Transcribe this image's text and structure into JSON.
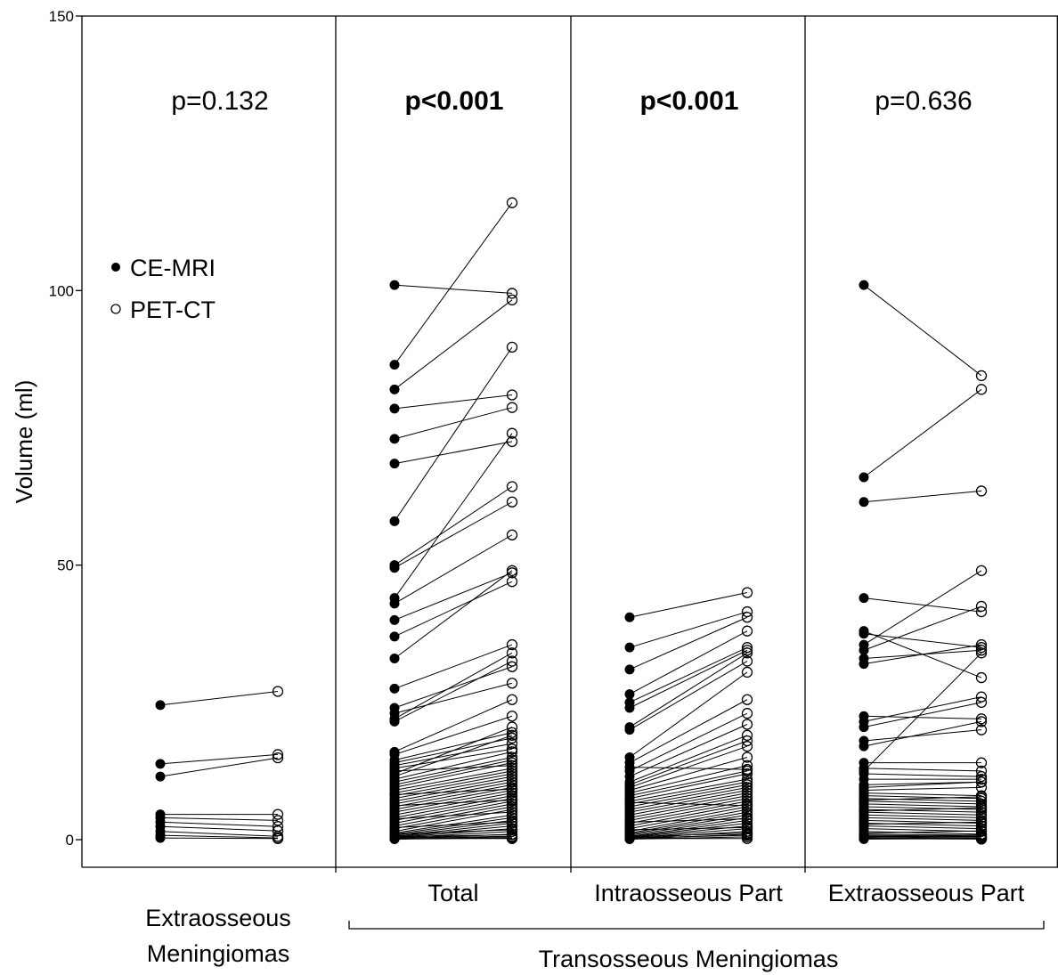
{
  "chart_data": {
    "type": "scatter",
    "subtype": "paired-dot plot",
    "ylabel": "Volume (ml)",
    "ylim": [
      0,
      150
    ],
    "y_ticks": [
      0,
      50,
      100,
      150
    ],
    "grid": false,
    "legend": {
      "position": "top-left",
      "entries": [
        "CE-MRI",
        "PET-CT"
      ]
    },
    "series_styles": [
      {
        "name": "CE-MRI",
        "marker": "filled circle",
        "color": "#000000"
      },
      {
        "name": "PET-CT",
        "marker": "open circle",
        "color": "#000000"
      }
    ],
    "panels": [
      {
        "label": "Extraosseous\nMeningiomas",
        "group": "",
        "p_value": "p=0.132",
        "p_bold": false,
        "pairs": [
          [
            24.5,
            27
          ],
          [
            13.8,
            15.5
          ],
          [
            11.5,
            14.9
          ],
          [
            4.6,
            4.6
          ],
          [
            4,
            3.5
          ],
          [
            3.2,
            2.4
          ],
          [
            2.4,
            1.6
          ],
          [
            1.5,
            0.6
          ],
          [
            0.8,
            0.3
          ],
          [
            0.3,
            0.2
          ]
        ]
      },
      {
        "label": "Total",
        "group": "Transosseous Meningiomas",
        "p_value": "p<0.001",
        "p_bold": true,
        "pairs": [
          [
            101,
            99.5
          ],
          [
            86.5,
            116
          ],
          [
            82,
            98.3
          ],
          [
            78.5,
            81
          ],
          [
            73,
            78.7
          ],
          [
            68.5,
            72.5
          ],
          [
            58,
            89.7
          ],
          [
            50,
            64.3
          ],
          [
            49.5,
            61.5
          ],
          [
            44,
            74
          ],
          [
            43,
            55.5
          ],
          [
            40,
            48.6
          ],
          [
            37,
            47
          ],
          [
            33,
            49
          ],
          [
            27.5,
            35.5
          ],
          [
            24,
            31.5
          ],
          [
            23,
            28.5
          ],
          [
            22,
            34
          ],
          [
            21.5,
            32.5
          ],
          [
            16,
            25.5
          ],
          [
            15.5,
            22.5
          ],
          [
            14.5,
            19.5
          ],
          [
            14,
            18.5
          ],
          [
            13.5,
            17.5
          ],
          [
            13,
            16.5
          ],
          [
            12,
            20.5
          ],
          [
            11.5,
            19
          ],
          [
            11,
            16
          ],
          [
            10.5,
            15
          ],
          [
            10,
            14.5
          ],
          [
            9.5,
            14
          ],
          [
            9,
            13
          ],
          [
            8.5,
            12.5
          ],
          [
            8,
            12
          ],
          [
            7.5,
            11.5
          ],
          [
            7,
            11
          ],
          [
            6.5,
            10.5
          ],
          [
            6,
            10
          ],
          [
            5.5,
            9.5
          ],
          [
            5,
            9
          ],
          [
            4.5,
            8.5
          ],
          [
            4,
            8
          ],
          [
            3.5,
            7.5
          ],
          [
            3,
            7
          ],
          [
            2.5,
            6.5
          ],
          [
            2,
            6
          ],
          [
            1.5,
            5.5
          ],
          [
            1.2,
            4.5
          ],
          [
            1,
            4
          ],
          [
            0.8,
            3.5
          ],
          [
            0.6,
            3
          ],
          [
            0.5,
            2.5
          ],
          [
            0.4,
            2
          ],
          [
            0.3,
            1.5
          ],
          [
            0.2,
            1
          ],
          [
            0.1,
            0.5
          ],
          [
            0.1,
            0.3
          ],
          [
            0.2,
            0.2
          ],
          [
            0.3,
            0.6
          ],
          [
            0.5,
            0.9
          ],
          [
            1,
            1.8
          ],
          [
            2.2,
            3.2
          ],
          [
            3.8,
            5
          ],
          [
            6.2,
            7.2
          ],
          [
            8.2,
            9.2
          ],
          [
            12.5,
            13.5
          ]
        ]
      },
      {
        "label": "Intraosseous Part",
        "group": "Transosseous Meningiomas",
        "p_value": "p<0.001",
        "p_bold": true,
        "pairs": [
          [
            40.5,
            45
          ],
          [
            35,
            41.5
          ],
          [
            31,
            40.5
          ],
          [
            26.5,
            38
          ],
          [
            25,
            35
          ],
          [
            24,
            34.5
          ],
          [
            20.5,
            34
          ],
          [
            20,
            32.5
          ],
          [
            15,
            30.5
          ],
          [
            14,
            25.5
          ],
          [
            12.5,
            23
          ],
          [
            11.5,
            21
          ],
          [
            10.5,
            19
          ],
          [
            10,
            18
          ],
          [
            9.5,
            17
          ],
          [
            9,
            15
          ],
          [
            8.5,
            13.5
          ],
          [
            8,
            12.5
          ],
          [
            7.5,
            12
          ],
          [
            7,
            11
          ],
          [
            6.5,
            10.5
          ],
          [
            6,
            10
          ],
          [
            5.5,
            9.5
          ],
          [
            5,
            9
          ],
          [
            4.5,
            8.5
          ],
          [
            4,
            8
          ],
          [
            3.5,
            7.5
          ],
          [
            3,
            7
          ],
          [
            2.5,
            6.5
          ],
          [
            2,
            6
          ],
          [
            1.5,
            5.5
          ],
          [
            1.2,
            5
          ],
          [
            1,
            4.5
          ],
          [
            0.8,
            4
          ],
          [
            0.6,
            3.5
          ],
          [
            0.5,
            3
          ],
          [
            0.4,
            2.5
          ],
          [
            0.3,
            2
          ],
          [
            0.2,
            1.5
          ],
          [
            0.1,
            1
          ],
          [
            0.1,
            0.5
          ],
          [
            0.2,
            0.2
          ],
          [
            0.3,
            0.8
          ],
          [
            0.5,
            1.2
          ],
          [
            1.8,
            2.2
          ],
          [
            3.2,
            3.8
          ],
          [
            6.8,
            6.2
          ],
          [
            13.2,
            12.8
          ]
        ]
      },
      {
        "label": "Extraosseous Part",
        "group": "Transosseous Meningiomas",
        "p_value": "p=0.636",
        "p_bold": false,
        "pairs": [
          [
            101,
            84.5
          ],
          [
            66,
            82
          ],
          [
            61.5,
            63.5
          ],
          [
            44,
            41.5
          ],
          [
            38,
            29.5
          ],
          [
            37.5,
            35
          ],
          [
            35.5,
            49
          ],
          [
            34.5,
            42.5
          ],
          [
            33,
            34.5
          ],
          [
            32,
            35.5
          ],
          [
            22.5,
            22
          ],
          [
            21.5,
            26
          ],
          [
            20.5,
            25
          ],
          [
            18,
            20
          ],
          [
            17,
            21.5
          ],
          [
            14,
            14
          ],
          [
            12.5,
            34
          ],
          [
            11,
            11
          ],
          [
            10,
            10.5
          ],
          [
            9,
            9.5
          ],
          [
            8.5,
            8
          ],
          [
            8,
            7.5
          ],
          [
            7.5,
            7
          ],
          [
            7,
            6.5
          ],
          [
            6.5,
            6
          ],
          [
            6,
            5.5
          ],
          [
            5.5,
            5
          ],
          [
            5,
            4.5
          ],
          [
            4.5,
            4
          ],
          [
            4,
            3.5
          ],
          [
            3.5,
            3
          ],
          [
            3,
            2.5
          ],
          [
            2.5,
            2
          ],
          [
            2,
            1.5
          ],
          [
            1.5,
            1
          ],
          [
            1,
            0.8
          ],
          [
            0.8,
            0.6
          ],
          [
            0.6,
            0.5
          ],
          [
            0.5,
            0.3
          ],
          [
            0.3,
            0.2
          ],
          [
            0.2,
            0.1
          ],
          [
            0.1,
            0.2
          ],
          [
            0.4,
            0.9
          ],
          [
            1.2,
            1.6
          ],
          [
            2.8,
            3.2
          ],
          [
            5.2,
            5.8
          ],
          [
            7.2,
            7.8
          ],
          [
            9.5,
            10.5
          ],
          [
            12,
            11.5
          ],
          [
            13,
            12.5
          ]
        ]
      }
    ],
    "x_labels": [
      "Extraosseous\nMeningiomas",
      "Total",
      "Intraosseous Part",
      "Extraosseous Part"
    ],
    "group_label": "Transosseous Meningiomas"
  }
}
